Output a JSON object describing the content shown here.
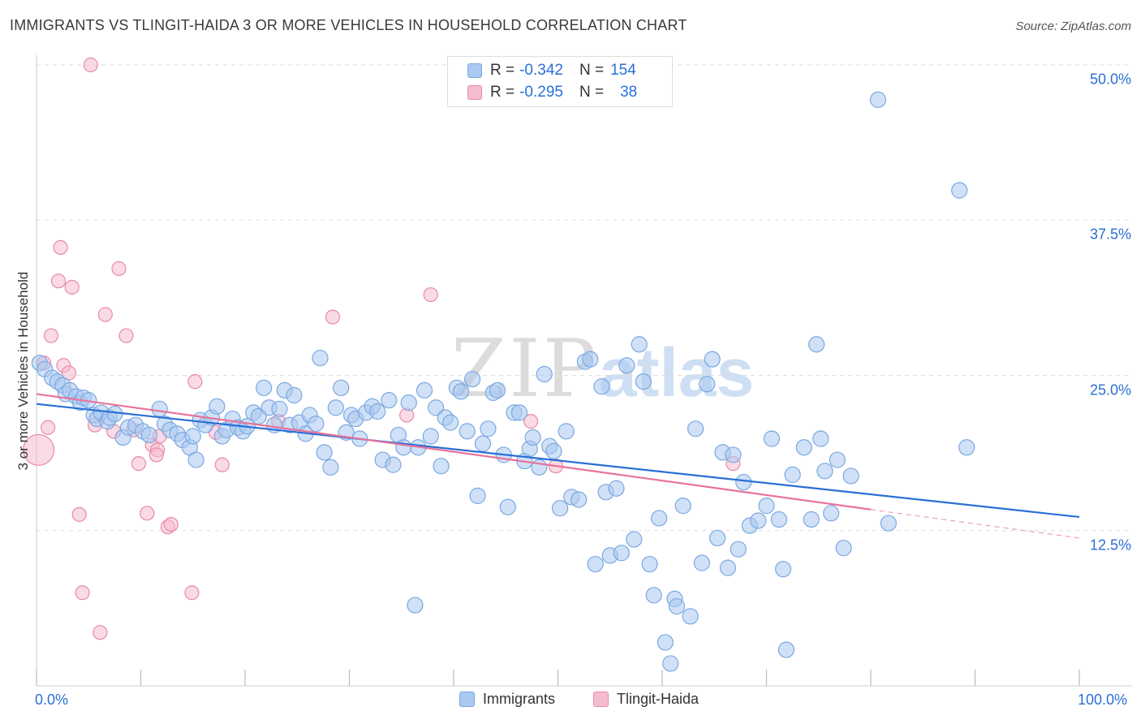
{
  "title": "IMMIGRANTS VS TLINGIT-HAIDA 3 OR MORE VEHICLES IN HOUSEHOLD CORRELATION CHART",
  "source": "Source: ZipAtlas.com",
  "watermark": {
    "zip": "ZIP",
    "atlas": "atlas"
  },
  "legend": {
    "rows": [
      {
        "r_label": "R =",
        "r_value": "-0.342",
        "n_label": "N =",
        "n_value": "154"
      },
      {
        "r_label": "R =",
        "r_value": "-0.295",
        "n_label": "N =",
        "n_value": "38"
      }
    ]
  },
  "bottom_legend": [
    "Immigrants",
    "Tlingit-Haida"
  ],
  "colors": {
    "blue_fill": "#a9c9f0",
    "blue_stroke": "#7aa8e0",
    "blue_line": "#2a6fd6",
    "pink_fill": "#f5bccd",
    "pink_stroke": "#e88aa6",
    "pink_line": "#e8739a",
    "grid": "#dddddd",
    "axis_text": "#2a6fd6"
  },
  "chart_data": {
    "type": "scatter",
    "title": "IMMIGRANTS VS TLINGIT-HAIDA 3 OR MORE VEHICLES IN HOUSEHOLD CORRELATION CHART",
    "xlabel": "",
    "ylabel": "3 or more Vehicles in Household",
    "xlim": [
      0,
      100
    ],
    "ylim": [
      0,
      50
    ],
    "x_tick_labels": [
      "0.0%",
      "100.0%"
    ],
    "y_ticks": [
      12.5,
      25.0,
      37.5,
      50.0
    ],
    "y_tick_labels": [
      "12.5%",
      "25.0%",
      "37.5%",
      "50.0%"
    ],
    "series": [
      {
        "name": "Immigrants",
        "r": -0.342,
        "n": 154,
        "trend": {
          "x": [
            0,
            100
          ],
          "y": [
            22.7,
            13.6
          ]
        },
        "points": [
          [
            0.3,
            26.0
          ],
          [
            0.8,
            25.5
          ],
          [
            1.5,
            24.8
          ],
          [
            2.0,
            24.5
          ],
          [
            2.5,
            24.2
          ],
          [
            2.8,
            23.5
          ],
          [
            3.2,
            23.8
          ],
          [
            3.8,
            23.3
          ],
          [
            4.2,
            22.8
          ],
          [
            4.5,
            23.2
          ],
          [
            5.0,
            23.0
          ],
          [
            5.5,
            21.8
          ],
          [
            5.8,
            21.5
          ],
          [
            6.2,
            22.0
          ],
          [
            6.8,
            21.3
          ],
          [
            7.0,
            21.6
          ],
          [
            7.5,
            21.9
          ],
          [
            8.3,
            20.0
          ],
          [
            8.8,
            20.8
          ],
          [
            9.5,
            21.0
          ],
          [
            10.2,
            20.5
          ],
          [
            10.8,
            20.2
          ],
          [
            11.8,
            22.3
          ],
          [
            12.3,
            21.1
          ],
          [
            12.8,
            20.6
          ],
          [
            13.5,
            20.3
          ],
          [
            14.0,
            19.8
          ],
          [
            14.7,
            19.2
          ],
          [
            15.0,
            20.1
          ],
          [
            15.3,
            18.2
          ],
          [
            15.7,
            21.4
          ],
          [
            16.2,
            21.0
          ],
          [
            16.8,
            21.6
          ],
          [
            17.3,
            22.5
          ],
          [
            17.8,
            20.1
          ],
          [
            18.2,
            20.6
          ],
          [
            18.8,
            21.5
          ],
          [
            19.3,
            20.8
          ],
          [
            19.8,
            20.5
          ],
          [
            20.2,
            20.9
          ],
          [
            20.8,
            22.0
          ],
          [
            21.3,
            21.7
          ],
          [
            21.8,
            24.0
          ],
          [
            22.3,
            22.4
          ],
          [
            22.8,
            21.0
          ],
          [
            23.3,
            22.3
          ],
          [
            23.8,
            23.8
          ],
          [
            24.3,
            21.0
          ],
          [
            24.7,
            23.4
          ],
          [
            25.2,
            21.2
          ],
          [
            25.8,
            20.3
          ],
          [
            26.2,
            21.8
          ],
          [
            26.8,
            21.1
          ],
          [
            27.2,
            26.4
          ],
          [
            27.6,
            18.8
          ],
          [
            28.2,
            17.6
          ],
          [
            28.7,
            22.4
          ],
          [
            29.2,
            24.0
          ],
          [
            29.7,
            20.4
          ],
          [
            30.2,
            21.8
          ],
          [
            30.6,
            21.5
          ],
          [
            31.0,
            19.9
          ],
          [
            31.6,
            22.0
          ],
          [
            32.2,
            22.5
          ],
          [
            32.7,
            22.1
          ],
          [
            33.2,
            18.2
          ],
          [
            33.8,
            23.0
          ],
          [
            34.2,
            17.8
          ],
          [
            34.7,
            20.2
          ],
          [
            35.2,
            19.2
          ],
          [
            35.7,
            22.8
          ],
          [
            36.3,
            6.5
          ],
          [
            36.6,
            19.2
          ],
          [
            37.2,
            23.8
          ],
          [
            37.8,
            20.1
          ],
          [
            38.3,
            22.4
          ],
          [
            38.8,
            17.7
          ],
          [
            39.2,
            21.6
          ],
          [
            39.7,
            21.2
          ],
          [
            40.3,
            24.0
          ],
          [
            40.7,
            23.7
          ],
          [
            41.3,
            20.5
          ],
          [
            41.8,
            24.7
          ],
          [
            42.3,
            15.3
          ],
          [
            42.8,
            19.5
          ],
          [
            43.3,
            20.7
          ],
          [
            43.8,
            23.6
          ],
          [
            44.2,
            23.8
          ],
          [
            44.8,
            18.6
          ],
          [
            45.2,
            14.4
          ],
          [
            45.8,
            22.0
          ],
          [
            46.3,
            22.0
          ],
          [
            46.8,
            18.1
          ],
          [
            47.3,
            19.1
          ],
          [
            47.6,
            20.0
          ],
          [
            48.2,
            17.6
          ],
          [
            48.7,
            25.1
          ],
          [
            49.2,
            19.3
          ],
          [
            49.6,
            18.9
          ],
          [
            50.2,
            14.3
          ],
          [
            50.8,
            20.5
          ],
          [
            51.3,
            15.2
          ],
          [
            52.0,
            15.0
          ],
          [
            52.6,
            26.1
          ],
          [
            53.1,
            26.3
          ],
          [
            53.6,
            9.8
          ],
          [
            54.2,
            24.1
          ],
          [
            54.6,
            15.6
          ],
          [
            55.0,
            10.5
          ],
          [
            55.6,
            15.9
          ],
          [
            56.1,
            10.7
          ],
          [
            56.6,
            25.8
          ],
          [
            57.3,
            11.8
          ],
          [
            57.8,
            27.5
          ],
          [
            58.2,
            24.5
          ],
          [
            58.8,
            9.8
          ],
          [
            59.2,
            7.3
          ],
          [
            59.7,
            13.5
          ],
          [
            60.3,
            3.5
          ],
          [
            60.8,
            1.8
          ],
          [
            61.2,
            7.0
          ],
          [
            61.4,
            6.4
          ],
          [
            62.0,
            14.5
          ],
          [
            62.7,
            5.6
          ],
          [
            63.2,
            20.7
          ],
          [
            63.8,
            9.9
          ],
          [
            64.3,
            24.3
          ],
          [
            64.8,
            26.3
          ],
          [
            65.3,
            11.9
          ],
          [
            65.8,
            18.8
          ],
          [
            66.3,
            9.5
          ],
          [
            66.8,
            18.6
          ],
          [
            67.3,
            11.0
          ],
          [
            67.8,
            16.4
          ],
          [
            68.4,
            12.9
          ],
          [
            69.2,
            13.3
          ],
          [
            70.0,
            14.5
          ],
          [
            70.5,
            19.9
          ],
          [
            71.2,
            13.4
          ],
          [
            71.6,
            9.4
          ],
          [
            71.9,
            2.9
          ],
          [
            72.5,
            17.0
          ],
          [
            73.6,
            19.2
          ],
          [
            74.3,
            13.4
          ],
          [
            74.8,
            27.5
          ],
          [
            75.2,
            19.9
          ],
          [
            75.6,
            17.3
          ],
          [
            76.2,
            13.9
          ],
          [
            76.8,
            18.2
          ],
          [
            77.4,
            11.1
          ],
          [
            78.1,
            16.9
          ],
          [
            80.7,
            47.2
          ],
          [
            81.7,
            13.1
          ],
          [
            88.5,
            39.9
          ],
          [
            89.2,
            19.2
          ]
        ]
      },
      {
        "name": "Tlingit-Haida",
        "r": -0.295,
        "n": 38,
        "trend": {
          "x": [
            0,
            80
          ],
          "y": [
            23.5,
            14.2
          ]
        },
        "trend_dashed": {
          "x": [
            80,
            100
          ],
          "y": [
            14.2,
            11.9
          ]
        },
        "points": [
          [
            0.2,
            19.0
          ],
          [
            0.7,
            26.0
          ],
          [
            1.1,
            20.8
          ],
          [
            1.4,
            28.2
          ],
          [
            2.1,
            32.6
          ],
          [
            2.3,
            35.3
          ],
          [
            2.6,
            25.8
          ],
          [
            3.1,
            25.2
          ],
          [
            3.4,
            32.1
          ],
          [
            4.1,
            13.8
          ],
          [
            4.4,
            7.5
          ],
          [
            5.2,
            50.0
          ],
          [
            5.6,
            21.0
          ],
          [
            6.1,
            4.3
          ],
          [
            6.6,
            29.9
          ],
          [
            7.4,
            20.5
          ],
          [
            7.9,
            33.6
          ],
          [
            8.6,
            28.2
          ],
          [
            9.3,
            20.6
          ],
          [
            9.8,
            17.9
          ],
          [
            10.6,
            13.9
          ],
          [
            11.1,
            19.4
          ],
          [
            11.6,
            19.0
          ],
          [
            11.8,
            20.1
          ],
          [
            11.5,
            18.6
          ],
          [
            12.6,
            12.8
          ],
          [
            12.9,
            13.0
          ],
          [
            14.9,
            7.5
          ],
          [
            15.2,
            24.5
          ],
          [
            17.2,
            20.4
          ],
          [
            17.8,
            17.8
          ],
          [
            23.2,
            21.3
          ],
          [
            28.4,
            29.7
          ],
          [
            35.5,
            21.8
          ],
          [
            37.8,
            31.5
          ],
          [
            47.4,
            21.3
          ],
          [
            49.8,
            17.7
          ],
          [
            66.8,
            17.9
          ]
        ]
      }
    ]
  }
}
